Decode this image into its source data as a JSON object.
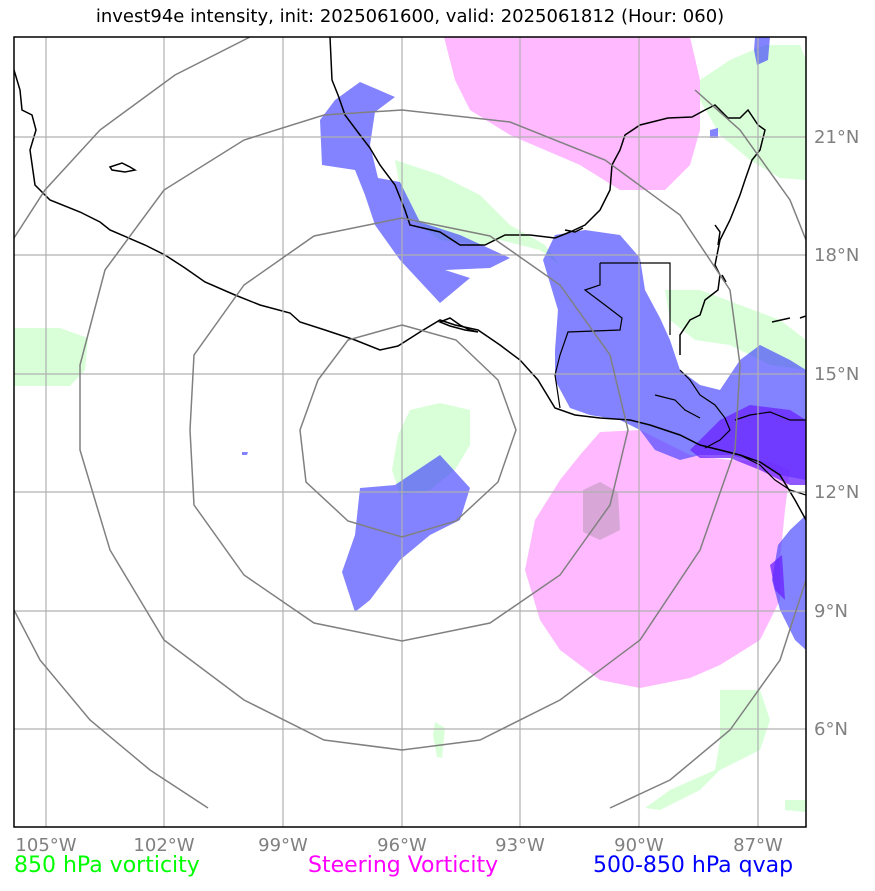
{
  "title": "invest94e intensity, init: 2025061600, valid: 2025061812 (Hour: 060)",
  "lon_labels": [
    "105°W",
    "102°W",
    "99°W",
    "96°W",
    "93°W",
    "90°W",
    "87°W"
  ],
  "lat_labels": [
    "21°N",
    "18°N",
    "15°N",
    "12°N",
    "9°N",
    "6°N"
  ],
  "legend": {
    "vort850": "850 hPa vorticity",
    "steering": "Steering Vorticity",
    "qvap": "500-850 hPa qvap"
  },
  "colors": {
    "vort850": "#00ff00",
    "steering": "#ff00ff",
    "qvap": "#0000ff"
  }
}
